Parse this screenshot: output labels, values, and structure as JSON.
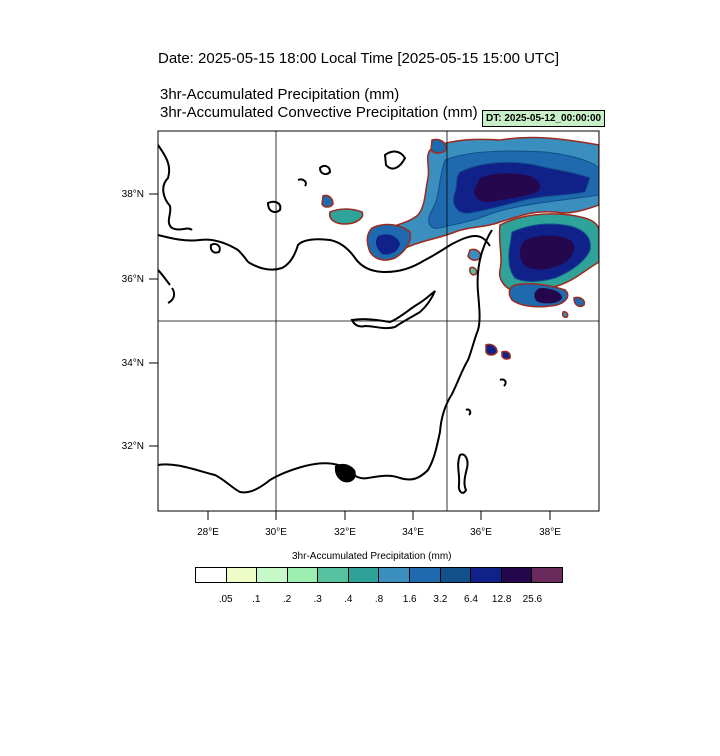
{
  "header": {
    "date_line": "Date: 2025-05-15  18:00 Local Time [2025-05-15  15:00 UTC]",
    "precip_title": "3hr-Accumulated Precipitation   (mm)",
    "convective_title": "3hr-Accumulated Convective Precipitation   (mm)",
    "dt_badge": "DT: 2025-05-12_00:00:00"
  },
  "map": {
    "lat_labels": [
      "38°N",
      "36°N",
      "34°N",
      "32°N"
    ],
    "lon_labels": [
      "28°E",
      "30°E",
      "32°E",
      "34°E",
      "36°E",
      "38°E"
    ]
  },
  "colorbar": {
    "title": "3hr-Accumulated Precipitation  (mm)",
    "levels": [
      ".05",
      ".1",
      ".2",
      ".3",
      ".4",
      ".8",
      "1.6",
      "3.2",
      "6.4",
      "12.8",
      "25.6"
    ],
    "colors": [
      "#ffffff",
      "#eefcc8",
      "#c7f9c8",
      "#9cefb0",
      "#57c2a0",
      "#2fa29a",
      "#3a8fbf",
      "#1f6aaf",
      "#11508a",
      "#11218a",
      "#24074d",
      "#6b2a5c"
    ]
  }
}
